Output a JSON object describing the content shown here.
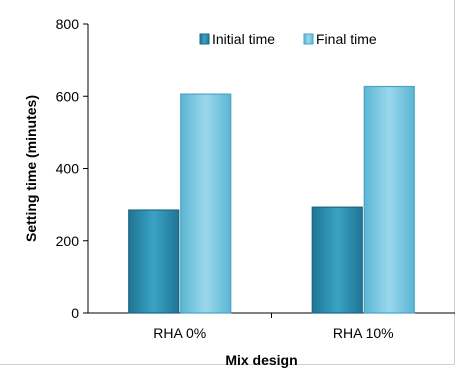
{
  "chart_data": {
    "type": "bar",
    "title": "",
    "xlabel": "Mix design",
    "ylabel": "Setting time (minutes)",
    "categories": [
      "RHA 0%",
      "RHA 10%"
    ],
    "series": [
      {
        "name": "Initial time",
        "values": [
          285,
          293
        ]
      },
      {
        "name": "Final time",
        "values": [
          606,
          627
        ]
      }
    ],
    "ylim": [
      0,
      800
    ],
    "yticks": [
      0,
      200,
      400,
      600,
      800
    ],
    "grid": false,
    "legend_position": "top-right",
    "colors": {
      "Initial time": "#2a8fae",
      "Final time": "#7ccbe3",
      "Initial time_dark": "#1d6780",
      "Final time_dark": "#4aa4c2",
      "axis": "#000000"
    }
  }
}
